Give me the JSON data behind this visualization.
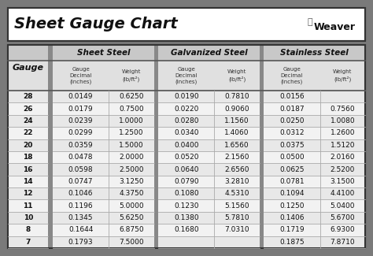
{
  "title": "Sheet Gauge Chart",
  "background_outer": "#7a7a7a",
  "background_inner": "#ffffff",
  "col_headers": [
    "Sheet Steel",
    "Galvanized Steel",
    "Stainless Steel"
  ],
  "gauges": [
    28,
    26,
    24,
    22,
    20,
    18,
    16,
    14,
    12,
    11,
    10,
    8,
    7
  ],
  "sheet_steel": [
    [
      "0.0149",
      "0.6250"
    ],
    [
      "0.0179",
      "0.7500"
    ],
    [
      "0.0239",
      "1.0000"
    ],
    [
      "0.0299",
      "1.2500"
    ],
    [
      "0.0359",
      "1.5000"
    ],
    [
      "0.0478",
      "2.0000"
    ],
    [
      "0.0598",
      "2.5000"
    ],
    [
      "0.0747",
      "3.1250"
    ],
    [
      "0.1046",
      "4.3750"
    ],
    [
      "0.1196",
      "5.0000"
    ],
    [
      "0.1345",
      "5.6250"
    ],
    [
      "0.1644",
      "6.8750"
    ],
    [
      "0.1793",
      "7.5000"
    ]
  ],
  "galvanized_steel": [
    [
      "0.0190",
      "0.7810"
    ],
    [
      "0.0220",
      "0.9060"
    ],
    [
      "0.0280",
      "1.1560"
    ],
    [
      "0.0340",
      "1.4060"
    ],
    [
      "0.0400",
      "1.6560"
    ],
    [
      "0.0520",
      "2.1560"
    ],
    [
      "0.0640",
      "2.6560"
    ],
    [
      "0.0790",
      "3.2810"
    ],
    [
      "0.1080",
      "4.5310"
    ],
    [
      "0.1230",
      "5.1560"
    ],
    [
      "0.1380",
      "5.7810"
    ],
    [
      "0.1680",
      "7.0310"
    ],
    [
      "",
      ""
    ]
  ],
  "stainless_steel": [
    [
      "0.0156",
      ""
    ],
    [
      "0.0187",
      "0.7560"
    ],
    [
      "0.0250",
      "1.0080"
    ],
    [
      "0.0312",
      "1.2600"
    ],
    [
      "0.0375",
      "1.5120"
    ],
    [
      "0.0500",
      "2.0160"
    ],
    [
      "0.0625",
      "2.5200"
    ],
    [
      "0.0781",
      "3.1500"
    ],
    [
      "0.1094",
      "4.4100"
    ],
    [
      "0.1250",
      "5.0400"
    ],
    [
      "0.1406",
      "5.6700"
    ],
    [
      "0.1719",
      "6.9300"
    ],
    [
      "0.1875",
      "7.8710"
    ]
  ],
  "row_colors": [
    "#e8e8e8",
    "#f2f2f2",
    "#e8e8e8",
    "#f2f2f2",
    "#e8e8e8",
    "#f2f2f2",
    "#e8e8e8",
    "#f2f2f2",
    "#e8e8e8",
    "#f2f2f2",
    "#e8e8e8",
    "#f2f2f2",
    "#e8e8e8"
  ]
}
